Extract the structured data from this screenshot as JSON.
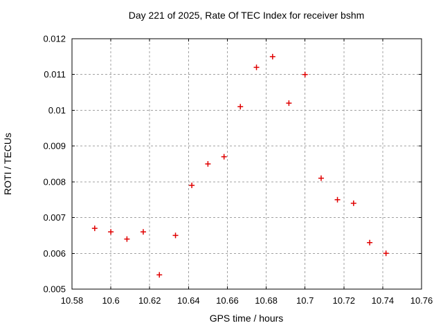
{
  "window": {
    "background": "#ffffff"
  },
  "colors": {
    "marker": "#e00000",
    "grid": "#a0a0a0",
    "axis": "#000000"
  },
  "chart_data": {
    "type": "scatter",
    "title": "Day 221 of 2025, Rate Of TEC Index for receiver bshm",
    "xlabel": "GPS time / hours",
    "ylabel": "ROTI / TECUs",
    "xlim": [
      10.58,
      10.76
    ],
    "ylim": [
      0.005,
      0.012
    ],
    "x_ticks": [
      10.58,
      10.6,
      10.62,
      10.64,
      10.66,
      10.68,
      10.7,
      10.72,
      10.74,
      10.76
    ],
    "x_tick_labels": [
      "10.58",
      "10.6",
      "10.62",
      "10.64",
      "10.66",
      "10.68",
      "10.7",
      "10.72",
      "10.74",
      "10.76"
    ],
    "y_ticks": [
      0.005,
      0.006,
      0.007,
      0.008,
      0.009,
      0.01,
      0.011,
      0.012
    ],
    "y_tick_labels": [
      "0.005",
      "0.006",
      "0.007",
      "0.008",
      "0.009",
      "0.01",
      "0.011",
      "0.012"
    ],
    "grid": true,
    "legend": false,
    "marker": {
      "shape": "plus",
      "color": "#e00000",
      "size": 9
    },
    "series": [
      {
        "name": "ROTI",
        "x": [
          10.5917,
          10.6,
          10.6083,
          10.6167,
          10.625,
          10.6333,
          10.6417,
          10.65,
          10.6583,
          10.6667,
          10.675,
          10.6833,
          10.6917,
          10.7,
          10.7083,
          10.7167,
          10.725,
          10.7333,
          10.7417
        ],
        "y": [
          0.0067,
          0.0066,
          0.0064,
          0.0066,
          0.0054,
          0.0065,
          0.0079,
          0.0085,
          0.0087,
          0.0101,
          0.0112,
          0.0115,
          0.0102,
          0.011,
          0.0081,
          0.0075,
          0.0074,
          0.0063,
          0.006
        ]
      }
    ]
  }
}
